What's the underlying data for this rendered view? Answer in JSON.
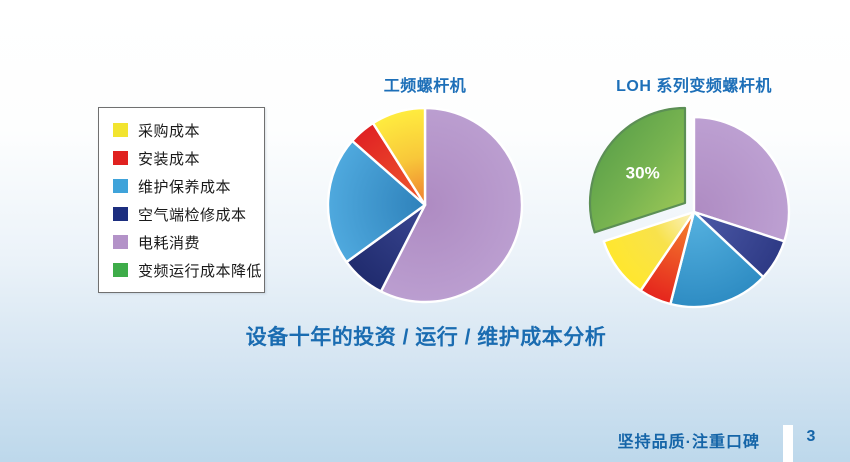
{
  "legend": {
    "items": [
      {
        "key": "purchase-cost",
        "label": "采购成本",
        "color": "#F2E42F"
      },
      {
        "key": "install-cost",
        "label": "安装成本",
        "color": "#E0211F"
      },
      {
        "key": "maintenance-cost",
        "label": "维护保养成本",
        "color": "#3FA3DA"
      },
      {
        "key": "overhaul-cost",
        "label": "空气端检修成本",
        "color": "#1C2E7F"
      },
      {
        "key": "power-cost",
        "label": "电耗消费",
        "color": "#B392C8"
      },
      {
        "key": "savings",
        "label": "变频运行成本降低",
        "color": "#3EAC49"
      }
    ]
  },
  "chart_data": [
    {
      "type": "pie",
      "title": "工频螺杆机",
      "unit": "percent",
      "start_angle": 0,
      "direction": "clockwise",
      "slices": [
        {
          "key": "power-cost",
          "label_zh": "电耗消费",
          "value": 57.5,
          "gradient": {
            "type": "radial",
            "stops": [
              [
                0,
                "#AE8BC2"
              ],
              [
                1,
                "#BB9ED0"
              ]
            ]
          }
        },
        {
          "key": "overhaul-cost",
          "label_zh": "空气端检修成本",
          "value": 7.5,
          "gradient": {
            "type": "radial",
            "stops": [
              [
                0,
                "#3A4792"
              ],
              [
                1,
                "#202B6E"
              ]
            ]
          }
        },
        {
          "key": "maintenance-cost",
          "label_zh": "维护保养成本",
          "value": 21.5,
          "gradient": {
            "type": "radial",
            "stops": [
              [
                0,
                "#2E81BA"
              ],
              [
                1,
                "#4FA9DE"
              ]
            ]
          }
        },
        {
          "key": "install-cost",
          "label_zh": "安装成本",
          "value": 4.5,
          "gradient": {
            "type": "radial",
            "stops": [
              [
                0,
                "#EF5B2D"
              ],
              [
                1,
                "#E02224"
              ]
            ]
          }
        },
        {
          "key": "purchase-cost",
          "label_zh": "采购成本",
          "value": 9,
          "gradient": {
            "type": "radial",
            "stops": [
              [
                0,
                "#EE7D2F"
              ],
              [
                0.5,
                "#F8C83A"
              ],
              [
                1,
                "#FFEC3F"
              ]
            ]
          }
        }
      ]
    },
    {
      "type": "pie",
      "title": "LOH 系列变频螺杆机",
      "unit": "percent",
      "start_angle": 0,
      "direction": "clockwise",
      "slices": [
        {
          "key": "power-cost",
          "label_zh": "电耗消费",
          "value": 30,
          "gradient": {
            "type": "radial",
            "stops": [
              [
                0,
                "#AE8BC2"
              ],
              [
                1,
                "#BDA0D2"
              ]
            ]
          }
        },
        {
          "key": "overhaul-cost",
          "label_zh": "空气端检修成本",
          "value": 7,
          "gradient": {
            "type": "radial",
            "stops": [
              [
                0,
                "#4D5AA8"
              ],
              [
                1,
                "#2E3A85"
              ]
            ]
          }
        },
        {
          "key": "maintenance-cost",
          "label_zh": "维护保养成本",
          "value": 17,
          "gradient": {
            "type": "radial",
            "stops": [
              [
                0,
                "#56B2E0"
              ],
              [
                1,
                "#2E8CC3"
              ]
            ]
          }
        },
        {
          "key": "install-cost",
          "label_zh": "安装成本",
          "value": 5.5,
          "gradient": {
            "type": "radial",
            "stops": [
              [
                0,
                "#F5852F"
              ],
              [
                1,
                "#E5251D"
              ]
            ]
          }
        },
        {
          "key": "purchase-cost",
          "label_zh": "采购成本",
          "value": 10.5,
          "gradient": {
            "type": "radial",
            "stops": [
              [
                0,
                "#FBF2C6"
              ],
              [
                0.45,
                "#F8E24C"
              ],
              [
                1,
                "#FFE72E"
              ]
            ]
          }
        },
        {
          "key": "savings",
          "label_zh": "变频运行成本降低",
          "value": 30,
          "label": "30%",
          "explode": [
            -9,
            -9
          ],
          "stroke": "#5C8F55",
          "gradient": {
            "type": "linear",
            "stops": [
              [
                0,
                "#4F9846"
              ],
              [
                0.55,
                "#77B350"
              ],
              [
                1,
                "#A4CC58"
              ]
            ]
          }
        }
      ]
    }
  ],
  "main": {
    "caption": "设备十年的投资 / 运行 / 维护成本分析"
  },
  "footer": {
    "slogan": "坚持品质·注重口碑",
    "page_number": "3"
  },
  "colors": {
    "title_blue": "#1D6FB8",
    "caption_blue": "#1A6CB1",
    "footer_blue": "#1565A8",
    "background_bottom": "#BDD8EB",
    "legend_border": "#707070"
  }
}
